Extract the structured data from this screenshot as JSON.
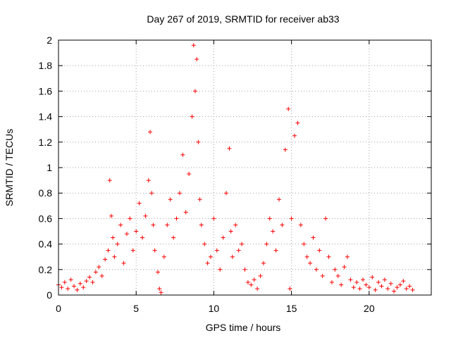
{
  "chart_data": {
    "type": "scatter",
    "title": "Day 267 of 2019, SRMTID for receiver ab33",
    "xlabel": "GPS time / hours",
    "ylabel": "SRMTID / TECUs",
    "xlim": [
      0,
      24
    ],
    "ylim": [
      0,
      2
    ],
    "xticks": [
      "0",
      "5",
      "10",
      "15",
      "20"
    ],
    "xtick_values": [
      0,
      5,
      10,
      15,
      20
    ],
    "yticks": [
      "0",
      "0.2",
      "0.4",
      "0.6",
      "0.8",
      "1",
      "1.2",
      "1.4",
      "1.6",
      "1.8",
      "2"
    ],
    "ytick_values": [
      0,
      0.2,
      0.4,
      0.6,
      0.8,
      1.0,
      1.2,
      1.4,
      1.6,
      1.8,
      2.0
    ],
    "grid": true,
    "marker": "+",
    "color": "#ff0000",
    "series": [
      {
        "name": "SRMTID",
        "points": [
          [
            0.0,
            0.08
          ],
          [
            0.2,
            0.06
          ],
          [
            0.4,
            0.1
          ],
          [
            0.6,
            0.05
          ],
          [
            0.8,
            0.12
          ],
          [
            1.0,
            0.07
          ],
          [
            1.2,
            0.04
          ],
          [
            1.4,
            0.09
          ],
          [
            1.6,
            0.06
          ],
          [
            1.8,
            0.11
          ],
          [
            2.0,
            0.14
          ],
          [
            2.2,
            0.1
          ],
          [
            2.4,
            0.18
          ],
          [
            2.6,
            0.22
          ],
          [
            2.8,
            0.15
          ],
          [
            3.0,
            0.28
          ],
          [
            3.2,
            0.35
          ],
          [
            3.3,
            0.9
          ],
          [
            3.4,
            0.62
          ],
          [
            3.5,
            0.45
          ],
          [
            3.6,
            0.3
          ],
          [
            3.8,
            0.4
          ],
          [
            4.0,
            0.55
          ],
          [
            4.2,
            0.25
          ],
          [
            4.4,
            0.48
          ],
          [
            4.6,
            0.6
          ],
          [
            4.8,
            0.35
          ],
          [
            5.0,
            0.5
          ],
          [
            5.2,
            0.72
          ],
          [
            5.4,
            0.45
          ],
          [
            5.6,
            0.62
          ],
          [
            5.8,
            0.9
          ],
          [
            5.9,
            1.28
          ],
          [
            6.0,
            0.8
          ],
          [
            6.1,
            0.55
          ],
          [
            6.2,
            0.35
          ],
          [
            6.4,
            0.18
          ],
          [
            6.5,
            0.05
          ],
          [
            6.6,
            0.02
          ],
          [
            6.8,
            0.3
          ],
          [
            7.0,
            0.55
          ],
          [
            7.2,
            0.75
          ],
          [
            7.4,
            0.45
          ],
          [
            7.6,
            0.6
          ],
          [
            7.8,
            0.8
          ],
          [
            8.0,
            1.1
          ],
          [
            8.2,
            0.65
          ],
          [
            8.4,
            0.95
          ],
          [
            8.6,
            1.4
          ],
          [
            8.7,
            1.96
          ],
          [
            8.8,
            1.6
          ],
          [
            8.9,
            1.85
          ],
          [
            9.0,
            1.2
          ],
          [
            9.1,
            0.75
          ],
          [
            9.2,
            0.55
          ],
          [
            9.4,
            0.4
          ],
          [
            9.6,
            0.25
          ],
          [
            9.8,
            0.3
          ],
          [
            10.0,
            0.6
          ],
          [
            10.2,
            0.35
          ],
          [
            10.4,
            0.2
          ],
          [
            10.6,
            0.45
          ],
          [
            10.8,
            0.8
          ],
          [
            11.0,
            1.15
          ],
          [
            11.1,
            0.5
          ],
          [
            11.2,
            0.3
          ],
          [
            11.4,
            0.55
          ],
          [
            11.6,
            0.35
          ],
          [
            11.8,
            0.4
          ],
          [
            12.0,
            0.2
          ],
          [
            12.2,
            0.1
          ],
          [
            12.4,
            0.08
          ],
          [
            12.6,
            0.12
          ],
          [
            12.8,
            0.05
          ],
          [
            13.0,
            0.15
          ],
          [
            13.2,
            0.25
          ],
          [
            13.4,
            0.4
          ],
          [
            13.6,
            0.6
          ],
          [
            13.8,
            0.5
          ],
          [
            14.0,
            0.35
          ],
          [
            14.2,
            0.75
          ],
          [
            14.4,
            0.55
          ],
          [
            14.6,
            1.14
          ],
          [
            14.8,
            1.46
          ],
          [
            14.9,
            0.05
          ],
          [
            15.0,
            0.6
          ],
          [
            15.2,
            1.25
          ],
          [
            15.4,
            1.35
          ],
          [
            15.6,
            0.55
          ],
          [
            15.8,
            0.4
          ],
          [
            16.0,
            0.3
          ],
          [
            16.2,
            0.25
          ],
          [
            16.4,
            0.45
          ],
          [
            16.6,
            0.2
          ],
          [
            16.8,
            0.35
          ],
          [
            17.0,
            0.15
          ],
          [
            17.2,
            0.6
          ],
          [
            17.4,
            0.3
          ],
          [
            17.6,
            0.1
          ],
          [
            17.8,
            0.2
          ],
          [
            18.0,
            0.15
          ],
          [
            18.2,
            0.08
          ],
          [
            18.4,
            0.22
          ],
          [
            18.6,
            0.3
          ],
          [
            18.8,
            0.12
          ],
          [
            19.0,
            0.06
          ],
          [
            19.2,
            0.1
          ],
          [
            19.4,
            0.05
          ],
          [
            19.6,
            0.12
          ],
          [
            19.8,
            0.08
          ],
          [
            20.0,
            0.06
          ],
          [
            20.2,
            0.14
          ],
          [
            20.4,
            0.04
          ],
          [
            20.6,
            0.1
          ],
          [
            20.8,
            0.07
          ],
          [
            21.0,
            0.12
          ],
          [
            21.2,
            0.05
          ],
          [
            21.4,
            0.09
          ],
          [
            21.6,
            0.03
          ],
          [
            21.8,
            0.06
          ],
          [
            22.0,
            0.08
          ],
          [
            22.2,
            0.11
          ],
          [
            22.4,
            0.05
          ],
          [
            22.6,
            0.07
          ],
          [
            22.8,
            0.04
          ]
        ]
      }
    ]
  }
}
